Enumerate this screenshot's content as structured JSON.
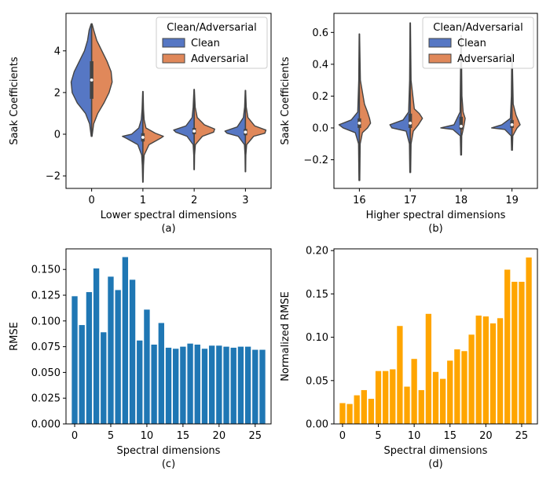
{
  "chart_data": [
    {
      "type": "violin",
      "panel_label": "(a)",
      "xlabel": "Lower spectral dimensions",
      "ylabel": "Saak Coefficients",
      "categories": [
        "0",
        "1",
        "2",
        "3"
      ],
      "ylim": [
        -2.6,
        5.8
      ],
      "yticks": [
        -2,
        0,
        2,
        4
      ],
      "yticklabels": [
        "−2",
        "0",
        "2",
        "4"
      ],
      "legend": {
        "title": "Clean/Adversarial",
        "position": "upper-right",
        "entries": [
          {
            "name": "Clean",
            "color": "#5677c4"
          },
          {
            "name": "Adversarial",
            "color": "#e0885a"
          }
        ]
      },
      "violins": [
        {
          "category": "0",
          "min": -0.1,
          "max": 5.3,
          "median": 2.6,
          "q1": 1.7,
          "q3": 3.5,
          "clean": [
            [
              -0.1,
              0.02
            ],
            [
              0.5,
              0.1
            ],
            [
              1.0,
              0.3
            ],
            [
              1.5,
              0.7
            ],
            [
              2.0,
              0.95
            ],
            [
              2.5,
              1.0
            ],
            [
              3.0,
              0.85
            ],
            [
              3.5,
              0.6
            ],
            [
              4.0,
              0.35
            ],
            [
              4.5,
              0.2
            ],
            [
              5.0,
              0.12
            ],
            [
              5.3,
              0.02
            ]
          ],
          "adversarial": [
            [
              -0.1,
              0.02
            ],
            [
              0.5,
              0.1
            ],
            [
              1.0,
              0.3
            ],
            [
              1.5,
              0.6
            ],
            [
              2.0,
              0.85
            ],
            [
              2.5,
              1.0
            ],
            [
              3.0,
              0.95
            ],
            [
              3.5,
              0.75
            ],
            [
              4.0,
              0.5
            ],
            [
              4.5,
              0.25
            ],
            [
              5.0,
              0.1
            ],
            [
              5.3,
              0.02
            ]
          ]
        },
        {
          "category": "1",
          "min": -2.3,
          "max": 2.05,
          "median": -0.15,
          "q1": -0.35,
          "q3": 0.05,
          "clean": [
            [
              -2.3,
              0.01
            ],
            [
              -1.5,
              0.03
            ],
            [
              -1.0,
              0.06
            ],
            [
              -0.5,
              0.25
            ],
            [
              -0.2,
              0.8
            ],
            [
              -0.1,
              1.0
            ],
            [
              0.0,
              0.55
            ],
            [
              0.3,
              0.2
            ],
            [
              0.7,
              0.08
            ],
            [
              1.2,
              0.04
            ],
            [
              2.05,
              0.01
            ]
          ],
          "adversarial": [
            [
              -2.3,
              0.01
            ],
            [
              -1.5,
              0.03
            ],
            [
              -1.0,
              0.06
            ],
            [
              -0.5,
              0.3
            ],
            [
              -0.2,
              0.85
            ],
            [
              -0.1,
              1.0
            ],
            [
              0.05,
              0.6
            ],
            [
              0.3,
              0.15
            ],
            [
              0.7,
              0.06
            ],
            [
              1.2,
              0.03
            ],
            [
              2.05,
              0.01
            ]
          ]
        },
        {
          "category": "2",
          "min": -1.7,
          "max": 2.15,
          "median": 0.15,
          "q1": 0.0,
          "q3": 0.3,
          "clean": [
            [
              -1.7,
              0.01
            ],
            [
              -1.0,
              0.02
            ],
            [
              -0.5,
              0.05
            ],
            [
              -0.1,
              0.35
            ],
            [
              0.1,
              0.9
            ],
            [
              0.2,
              1.0
            ],
            [
              0.4,
              0.4
            ],
            [
              0.8,
              0.1
            ],
            [
              1.3,
              0.05
            ],
            [
              2.15,
              0.01
            ]
          ],
          "adversarial": [
            [
              -1.7,
              0.01
            ],
            [
              -1.0,
              0.02
            ],
            [
              -0.5,
              0.06
            ],
            [
              -0.1,
              0.4
            ],
            [
              0.1,
              0.95
            ],
            [
              0.25,
              1.0
            ],
            [
              0.45,
              0.5
            ],
            [
              0.8,
              0.15
            ],
            [
              1.3,
              0.05
            ],
            [
              2.15,
              0.01
            ]
          ]
        },
        {
          "category": "3",
          "min": -1.8,
          "max": 2.1,
          "median": 0.1,
          "q1": -0.05,
          "q3": 0.25,
          "clean": [
            [
              -1.8,
              0.01
            ],
            [
              -1.0,
              0.02
            ],
            [
              -0.5,
              0.05
            ],
            [
              -0.1,
              0.35
            ],
            [
              0.05,
              0.9
            ],
            [
              0.15,
              1.0
            ],
            [
              0.35,
              0.4
            ],
            [
              0.8,
              0.1
            ],
            [
              1.3,
              0.04
            ],
            [
              2.1,
              0.01
            ]
          ],
          "adversarial": [
            [
              -1.8,
              0.01
            ],
            [
              -1.0,
              0.02
            ],
            [
              -0.5,
              0.06
            ],
            [
              -0.1,
              0.4
            ],
            [
              0.05,
              0.95
            ],
            [
              0.2,
              1.0
            ],
            [
              0.4,
              0.45
            ],
            [
              0.8,
              0.12
            ],
            [
              1.3,
              0.04
            ],
            [
              2.1,
              0.01
            ]
          ]
        }
      ]
    },
    {
      "type": "violin",
      "panel_label": "(b)",
      "xlabel": "Higher spectral dimensions",
      "ylabel": "Saak Coefficients",
      "categories": [
        "16",
        "17",
        "18",
        "19"
      ],
      "ylim": [
        -0.38,
        0.72
      ],
      "yticks": [
        -0.2,
        0.0,
        0.2,
        0.4,
        0.6
      ],
      "yticklabels": [
        "−0.2",
        "0.0",
        "0.2",
        "0.4",
        "0.6"
      ],
      "legend": {
        "title": "Clean/Adversarial",
        "position": "upper-right",
        "entries": [
          {
            "name": "Clean",
            "color": "#5677c4"
          },
          {
            "name": "Adversarial",
            "color": "#e0885a"
          }
        ]
      },
      "violins": [
        {
          "category": "16",
          "min": -0.33,
          "max": 0.59,
          "median": 0.03,
          "q1": 0.0,
          "q3": 0.06,
          "clean": [
            [
              -0.33,
              0.02
            ],
            [
              -0.1,
              0.04
            ],
            [
              -0.03,
              0.2
            ],
            [
              0.0,
              0.8
            ],
            [
              0.02,
              1.0
            ],
            [
              0.05,
              0.4
            ],
            [
              0.1,
              0.08
            ],
            [
              0.3,
              0.03
            ],
            [
              0.59,
              0.01
            ]
          ],
          "adversarial": [
            [
              -0.33,
              0.02
            ],
            [
              -0.1,
              0.04
            ],
            [
              -0.03,
              0.15
            ],
            [
              0.0,
              0.4
            ],
            [
              0.03,
              0.55
            ],
            [
              0.06,
              0.5
            ],
            [
              0.1,
              0.4
            ],
            [
              0.15,
              0.25
            ],
            [
              0.3,
              0.05
            ],
            [
              0.59,
              0.01
            ]
          ]
        },
        {
          "category": "17",
          "min": -0.28,
          "max": 0.66,
          "median": 0.03,
          "q1": 0.0,
          "q3": 0.09,
          "clean": [
            [
              -0.28,
              0.02
            ],
            [
              -0.1,
              0.04
            ],
            [
              -0.02,
              0.2
            ],
            [
              0.0,
              0.9
            ],
            [
              0.02,
              1.0
            ],
            [
              0.05,
              0.35
            ],
            [
              0.1,
              0.08
            ],
            [
              0.3,
              0.03
            ],
            [
              0.66,
              0.01
            ]
          ],
          "adversarial": [
            [
              -0.28,
              0.02
            ],
            [
              -0.1,
              0.04
            ],
            [
              -0.02,
              0.15
            ],
            [
              0.02,
              0.4
            ],
            [
              0.06,
              0.6
            ],
            [
              0.09,
              0.45
            ],
            [
              0.12,
              0.2
            ],
            [
              0.3,
              0.04
            ],
            [
              0.66,
              0.01
            ]
          ]
        },
        {
          "category": "18",
          "min": -0.17,
          "max": 0.58,
          "median": 0.01,
          "q1": -0.01,
          "q3": 0.07,
          "clean": [
            [
              -0.17,
              0.02
            ],
            [
              -0.05,
              0.04
            ],
            [
              -0.01,
              0.4
            ],
            [
              0.0,
              1.0
            ],
            [
              0.02,
              0.35
            ],
            [
              0.1,
              0.05
            ],
            [
              0.58,
              0.01
            ]
          ],
          "adversarial": [
            [
              -0.17,
              0.02
            ],
            [
              -0.05,
              0.03
            ],
            [
              -0.01,
              0.1
            ],
            [
              0.02,
              0.15
            ],
            [
              0.06,
              0.2
            ],
            [
              0.1,
              0.1
            ],
            [
              0.2,
              0.04
            ],
            [
              0.58,
              0.01
            ]
          ]
        },
        {
          "category": "19",
          "min": -0.14,
          "max": 0.47,
          "median": 0.02,
          "q1": 0.0,
          "q3": 0.05,
          "clean": [
            [
              -0.14,
              0.02
            ],
            [
              -0.05,
              0.04
            ],
            [
              -0.01,
              0.35
            ],
            [
              0.0,
              1.0
            ],
            [
              0.02,
              0.5
            ],
            [
              0.06,
              0.08
            ],
            [
              0.2,
              0.03
            ],
            [
              0.47,
              0.01
            ]
          ],
          "adversarial": [
            [
              -0.14,
              0.02
            ],
            [
              -0.05,
              0.04
            ],
            [
              0.0,
              0.25
            ],
            [
              0.02,
              0.4
            ],
            [
              0.05,
              0.3
            ],
            [
              0.08,
              0.2
            ],
            [
              0.15,
              0.06
            ],
            [
              0.47,
              0.01
            ]
          ]
        }
      ]
    },
    {
      "type": "bar",
      "panel_label": "(c)",
      "xlabel": "Spectral dimensions",
      "ylabel": "RMSE",
      "color": "#1f77b4",
      "x": [
        0,
        1,
        2,
        3,
        4,
        5,
        6,
        7,
        8,
        9,
        10,
        11,
        12,
        13,
        14,
        15,
        16,
        17,
        18,
        19,
        20,
        21,
        22,
        23,
        24,
        25,
        26
      ],
      "values": [
        0.124,
        0.096,
        0.128,
        0.151,
        0.089,
        0.143,
        0.13,
        0.162,
        0.14,
        0.081,
        0.111,
        0.077,
        0.098,
        0.074,
        0.073,
        0.075,
        0.078,
        0.077,
        0.073,
        0.076,
        0.076,
        0.075,
        0.074,
        0.075,
        0.075,
        0.072,
        0.072
      ],
      "ylim": [
        0,
        0.17
      ],
      "xlim": [
        -1.2,
        27.2
      ],
      "yticks": [
        0.0,
        0.025,
        0.05,
        0.075,
        0.1,
        0.125,
        0.15
      ],
      "yticklabels": [
        "0.000",
        "0.025",
        "0.050",
        "0.075",
        "0.100",
        "0.125",
        "0.150"
      ],
      "xticks": [
        0,
        5,
        10,
        15,
        20,
        25
      ],
      "xticklabels": [
        "0",
        "5",
        "10",
        "15",
        "20",
        "25"
      ]
    },
    {
      "type": "bar",
      "panel_label": "(d)",
      "xlabel": "Spectral dimensions",
      "ylabel": "Normalized RMSE",
      "color": "#ffa500",
      "x": [
        0,
        1,
        2,
        3,
        4,
        5,
        6,
        7,
        8,
        9,
        10,
        11,
        12,
        13,
        14,
        15,
        16,
        17,
        18,
        19,
        20,
        21,
        22,
        23,
        24,
        25,
        26
      ],
      "values": [
        0.024,
        0.023,
        0.033,
        0.039,
        0.029,
        0.061,
        0.061,
        0.063,
        0.113,
        0.043,
        0.075,
        0.039,
        0.127,
        0.06,
        0.052,
        0.073,
        0.086,
        0.084,
        0.103,
        0.125,
        0.124,
        0.116,
        0.122,
        0.178,
        0.164,
        0.164,
        0.192
      ],
      "ylim": [
        0,
        0.202
      ],
      "xlim": [
        -1.2,
        27.2
      ],
      "yticks": [
        0.0,
        0.05,
        0.1,
        0.15,
        0.2
      ],
      "yticklabels": [
        "0.00",
        "0.05",
        "0.10",
        "0.15",
        "0.20"
      ],
      "xticks": [
        0,
        5,
        10,
        15,
        20,
        25
      ],
      "xticklabels": [
        "0",
        "5",
        "10",
        "15",
        "20",
        "25"
      ]
    }
  ]
}
